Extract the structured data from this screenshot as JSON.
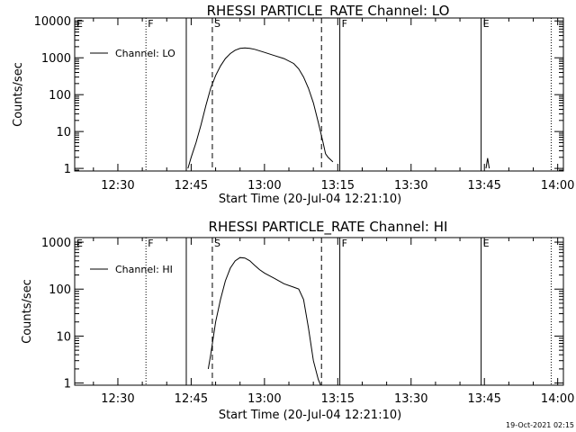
{
  "footer": {
    "timestamp": "19-Oct-2021 02:15"
  },
  "chart_data": [
    {
      "type": "line",
      "title": "RHESSI PARTICLE_RATE Channel: LO",
      "xlabel": "Start Time (20-Jul-04 12:21:10)",
      "ylabel": "Counts/sec",
      "yscale": "log",
      "xlim": [
        "12:21:10",
        "14:01:10"
      ],
      "ylim": [
        0.85,
        12000
      ],
      "x_ticks": [
        "12:30",
        "12:45",
        "13:00",
        "13:15",
        "13:30",
        "13:45",
        "14:00"
      ],
      "y_ticks": [
        "1",
        "10",
        "100",
        "1000",
        "10000"
      ],
      "legend": {
        "position": "top-left",
        "entries": [
          "Channel: LO"
        ]
      },
      "series": [
        {
          "name": "Channel: LO",
          "x": [
            "12:44:20",
            "12:45:00",
            "12:46:00",
            "12:47:00",
            "12:48:00",
            "12:49:00",
            "12:50:00",
            "12:51:00",
            "12:52:00",
            "12:53:00",
            "12:54:00",
            "12:55:00",
            "12:56:00",
            "12:57:00",
            "12:58:00",
            "13:00:00",
            "13:02:00",
            "13:04:00",
            "13:06:00",
            "13:07:00",
            "13:08:00",
            "13:09:00",
            "13:10:00",
            "13:11:00",
            "13:12:00",
            "13:12:30",
            "13:13:00",
            "13:14:00"
          ],
          "values": [
            1,
            2,
            5,
            15,
            50,
            150,
            330,
            600,
            950,
            1300,
            1600,
            1800,
            1850,
            1800,
            1700,
            1400,
            1150,
            950,
            700,
            500,
            300,
            150,
            60,
            18,
            5,
            2.5,
            2,
            1.5
          ]
        },
        {
          "name": "",
          "x": [
            "13:45:20",
            "13:45:40",
            "13:46:00"
          ],
          "values": [
            1,
            1.9,
            1
          ]
        }
      ],
      "markers": [
        {
          "label": "E",
          "time": "12:21:10",
          "style": "dotted"
        },
        {
          "label": "F",
          "time": "12:35:45",
          "style": "dotted"
        },
        {
          "label": "",
          "time": "12:44:00",
          "style": "solid"
        },
        {
          "label": "S",
          "time": "12:49:20",
          "style": "dashed"
        },
        {
          "label": "",
          "time": "13:11:40",
          "style": "dashed"
        },
        {
          "label": "F",
          "time": "13:15:25",
          "style": "solid"
        },
        {
          "label": "E",
          "time": "13:44:20",
          "style": "solid"
        },
        {
          "label": "",
          "time": "13:58:40",
          "style": "dotted"
        }
      ],
      "grid": false
    },
    {
      "type": "line",
      "title": "RHESSI PARTICLE_RATE Channel: HI",
      "xlabel": "Start Time (20-Jul-04 12:21:10)",
      "ylabel": "Counts/sec",
      "yscale": "log",
      "xlim": [
        "12:21:10",
        "14:01:10"
      ],
      "ylim": [
        0.9,
        1250
      ],
      "x_ticks": [
        "12:30",
        "12:45",
        "13:00",
        "13:15",
        "13:30",
        "13:45",
        "14:00"
      ],
      "y_ticks": [
        "1",
        "10",
        "100",
        "1000"
      ],
      "legend": {
        "position": "top-left",
        "entries": [
          "Channel: HI"
        ]
      },
      "series": [
        {
          "name": "Channel: HI",
          "x": [
            "12:48:30",
            "12:49:00",
            "12:50:00",
            "12:51:00",
            "12:52:00",
            "12:53:00",
            "12:54:00",
            "12:55:00",
            "12:56:00",
            "12:57:00",
            "12:58:00",
            "12:59:00",
            "13:00:00",
            "13:02:00",
            "13:04:00",
            "13:06:00",
            "13:07:00",
            "13:08:00",
            "13:09:00",
            "13:10:00",
            "13:11:00",
            "13:11:30"
          ],
          "values": [
            2,
            4,
            20,
            60,
            150,
            280,
            400,
            470,
            460,
            400,
            320,
            260,
            220,
            170,
            130,
            110,
            100,
            60,
            15,
            3,
            1.2,
            0.9
          ]
        }
      ],
      "markers": [
        {
          "label": "E",
          "time": "12:21:10",
          "style": "dotted"
        },
        {
          "label": "F",
          "time": "12:35:45",
          "style": "dotted"
        },
        {
          "label": "",
          "time": "12:44:00",
          "style": "solid"
        },
        {
          "label": "S",
          "time": "12:49:20",
          "style": "dashed"
        },
        {
          "label": "",
          "time": "13:11:40",
          "style": "dashed"
        },
        {
          "label": "F",
          "time": "13:15:25",
          "style": "solid"
        },
        {
          "label": "E",
          "time": "13:44:20",
          "style": "solid"
        },
        {
          "label": "",
          "time": "13:58:40",
          "style": "dotted"
        }
      ],
      "grid": false
    }
  ]
}
